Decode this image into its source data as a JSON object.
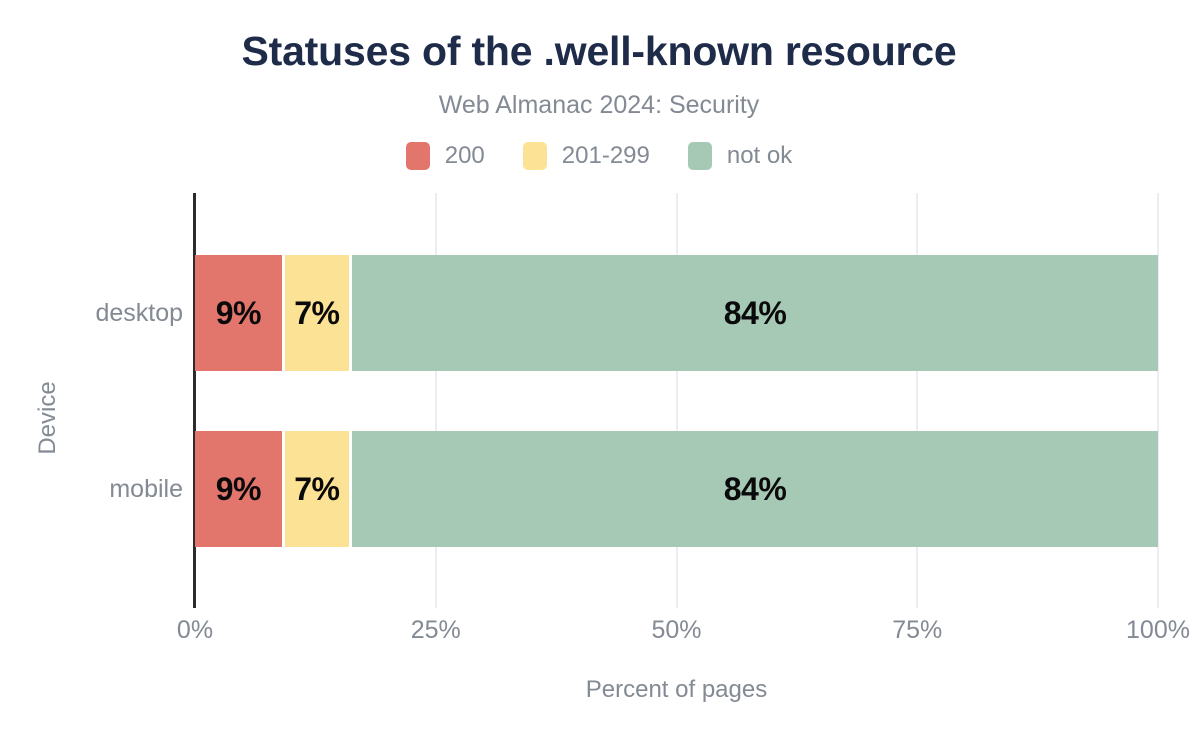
{
  "colors": {
    "title": "#1e2b49",
    "muted": "#838a94",
    "axis": "#2b2b2b",
    "grid": "#ebedf0",
    "value": "#0a0a0a",
    "bg": "#ffffff"
  },
  "chart_data": {
    "type": "bar",
    "orientation": "horizontal",
    "stacked": true,
    "title": "Statuses of the .well-known resource",
    "subtitle": "Web Almanac 2024: Security",
    "xlabel": "Percent of pages",
    "ylabel": "Device",
    "categories": [
      "desktop",
      "mobile"
    ],
    "series": [
      {
        "name": "200",
        "color": "#e3766c",
        "values": [
          9,
          9
        ]
      },
      {
        "name": "201-299",
        "color": "#fce294",
        "values": [
          7,
          7
        ]
      },
      {
        "name": "not ok",
        "color": "#a6c9b5",
        "values": [
          84,
          84
        ]
      }
    ],
    "value_suffix": "%",
    "xlim": [
      0,
      100
    ],
    "xticks": [
      {
        "label": "0%",
        "value": 0
      },
      {
        "label": "25%",
        "value": 25
      },
      {
        "label": "50%",
        "value": 50
      },
      {
        "label": "75%",
        "value": 75
      },
      {
        "label": "100%",
        "value": 100
      }
    ],
    "legend_position": "top",
    "grid": true
  }
}
